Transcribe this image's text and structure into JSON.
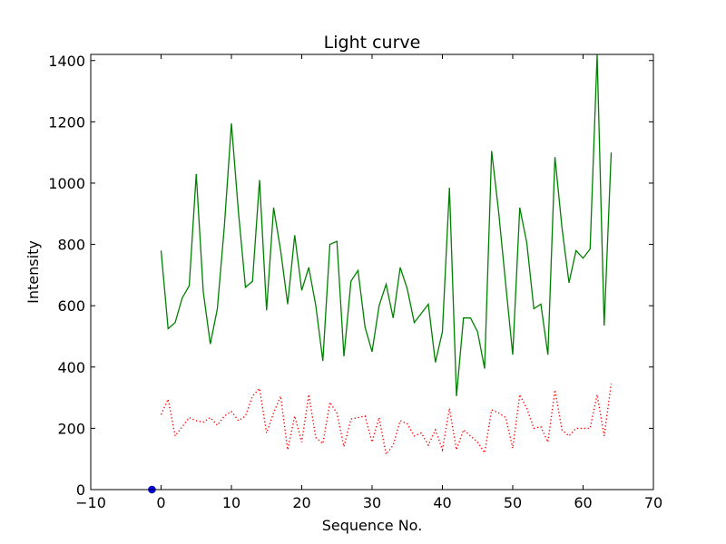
{
  "chart_data": {
    "type": "line",
    "title": "Light curve",
    "xlabel": "Sequence No.",
    "ylabel": "Intensity",
    "xlim": [
      -10,
      70
    ],
    "ylim": [
      0,
      1420
    ],
    "xticks": [
      -10,
      0,
      10,
      20,
      30,
      40,
      50,
      60,
      70
    ],
    "yticks": [
      0,
      200,
      400,
      600,
      800,
      1000,
      1200,
      1400
    ],
    "grid": false,
    "series": [
      {
        "color": "#008000",
        "style": "solid",
        "x": [
          0,
          1,
          2,
          3,
          4,
          5,
          6,
          7,
          8,
          9,
          10,
          11,
          12,
          13,
          14,
          15,
          16,
          17,
          18,
          19,
          20,
          21,
          22,
          23,
          24,
          25,
          26,
          27,
          28,
          29,
          30,
          31,
          32,
          33,
          34,
          35,
          36,
          37,
          38,
          39,
          40,
          41,
          42,
          43,
          44,
          45,
          46,
          47,
          48,
          49,
          50,
          51,
          52,
          53,
          54,
          55,
          56,
          57,
          58,
          59,
          60,
          61,
          62,
          63,
          64
        ],
        "y": [
          780,
          525,
          545,
          625,
          665,
          1030,
          645,
          475,
          590,
          860,
          1195,
          905,
          660,
          680,
          1010,
          585,
          920,
          780,
          605,
          830,
          650,
          725,
          600,
          420,
          800,
          810,
          435,
          680,
          715,
          530,
          450,
          600,
          670,
          560,
          725,
          655,
          545,
          575,
          605,
          415,
          515,
          985,
          305,
          560,
          560,
          515,
          395,
          1105,
          905,
          670,
          440,
          920,
          805,
          590,
          605,
          440,
          1085,
          855,
          675,
          780,
          755,
          785,
          1420,
          535,
          1100
        ]
      },
      {
        "color": "#ff0000",
        "style": "dotted",
        "x": [
          0,
          1,
          2,
          3,
          4,
          5,
          6,
          7,
          8,
          9,
          10,
          11,
          12,
          13,
          14,
          15,
          16,
          17,
          18,
          19,
          20,
          21,
          22,
          23,
          24,
          25,
          26,
          27,
          28,
          29,
          30,
          31,
          32,
          33,
          34,
          35,
          36,
          37,
          38,
          39,
          40,
          41,
          42,
          43,
          44,
          45,
          46,
          47,
          48,
          49,
          50,
          51,
          52,
          53,
          54,
          55,
          56,
          57,
          58,
          59,
          60,
          61,
          62,
          63,
          64
        ],
        "y": [
          245,
          295,
          175,
          205,
          235,
          225,
          220,
          235,
          210,
          240,
          255,
          225,
          240,
          305,
          330,
          185,
          250,
          305,
          130,
          240,
          155,
          310,
          170,
          150,
          285,
          250,
          140,
          230,
          235,
          240,
          155,
          235,
          115,
          145,
          225,
          215,
          175,
          185,
          145,
          195,
          130,
          265,
          130,
          195,
          175,
          155,
          120,
          260,
          250,
          235,
          135,
          310,
          265,
          200,
          205,
          155,
          325,
          195,
          175,
          200,
          200,
          200,
          310,
          175,
          345
        ]
      },
      {
        "color": "#0000ff",
        "style": "marker",
        "x": [
          -1.3
        ],
        "y": [
          0
        ]
      }
    ]
  }
}
